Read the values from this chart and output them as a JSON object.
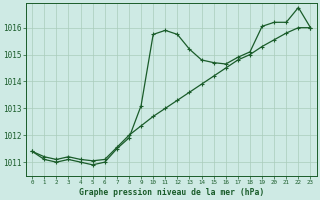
{
  "title": "Graphe pression niveau de la mer (hPa)",
  "background_color": "#ceeae4",
  "line_color": "#1a5c2a",
  "grid_color": "#aaccbb",
  "xlim": [
    -0.5,
    23.5
  ],
  "ylim": [
    1010.5,
    1016.9
  ],
  "yticks": [
    1011,
    1012,
    1013,
    1014,
    1015,
    1016
  ],
  "xticks": [
    0,
    1,
    2,
    3,
    4,
    5,
    6,
    7,
    8,
    9,
    10,
    11,
    12,
    13,
    14,
    15,
    16,
    17,
    18,
    19,
    20,
    21,
    22,
    23
  ],
  "wavy_x": [
    0,
    1,
    2,
    3,
    4,
    5,
    6,
    7,
    8,
    9,
    10,
    11,
    12,
    13,
    14,
    15,
    16,
    17,
    18,
    19,
    20,
    21,
    22,
    23
  ],
  "wavy_y": [
    1011.4,
    1011.1,
    1011.0,
    1011.1,
    1011.0,
    1010.9,
    1011.0,
    1011.5,
    1011.9,
    1013.1,
    1015.75,
    1015.9,
    1015.75,
    1015.2,
    1014.8,
    1014.7,
    1014.65,
    1014.9,
    1015.1,
    1016.05,
    1016.2,
    1016.2,
    1016.75,
    1016.0
  ],
  "straight_x": [
    0,
    1,
    2,
    3,
    4,
    5,
    6,
    7,
    8,
    9,
    10,
    11,
    12,
    13,
    14,
    15,
    16,
    17,
    18,
    19,
    20,
    21,
    22,
    23
  ],
  "straight_y": [
    1011.4,
    1011.2,
    1011.1,
    1011.2,
    1011.1,
    1011.05,
    1011.1,
    1011.55,
    1012.0,
    1012.35,
    1012.7,
    1013.0,
    1013.3,
    1013.6,
    1013.9,
    1014.2,
    1014.5,
    1014.8,
    1015.0,
    1015.3,
    1015.55,
    1015.8,
    1016.0,
    1016.0
  ]
}
